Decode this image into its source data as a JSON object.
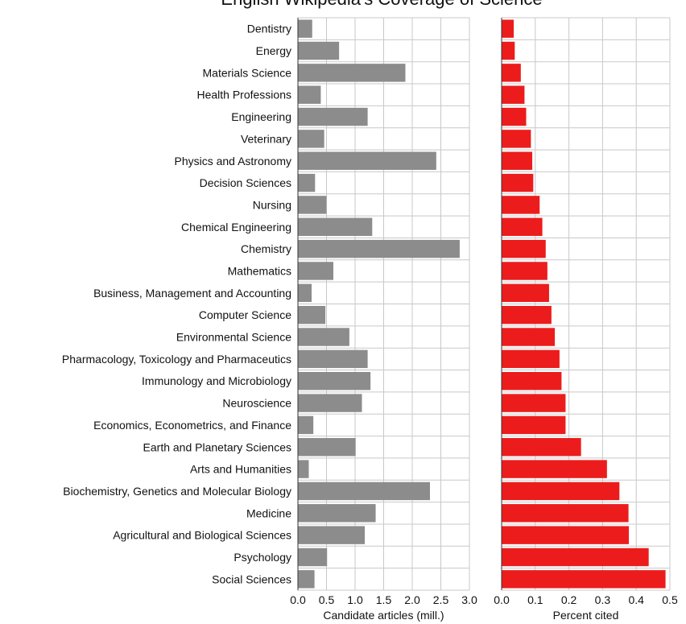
{
  "chart_data": {
    "title": "English Wikipedia's Coverage of Science",
    "categories": [
      "Dentistry",
      "Energy",
      "Materials Science",
      "Health Professions",
      "Engineering",
      "Veterinary",
      "Physics and Astronomy",
      "Decision Sciences",
      "Nursing",
      "Chemical Engineering",
      "Chemistry",
      "Mathematics",
      "Business, Management and Accounting",
      "Computer Science",
      "Environmental Science",
      "Pharmacology, Toxicology and Pharmaceutics",
      "Immunology and Microbiology",
      "Neuroscience",
      "Economics, Econometrics, and Finance",
      "Earth and Planetary Sciences",
      "Arts and Humanities",
      "Biochemistry, Genetics and Molecular Biology",
      "Medicine",
      "Agricultural and Biological Sciences",
      "Psychology",
      "Social Sciences"
    ],
    "panels": [
      {
        "type": "bar",
        "orientation": "horizontal",
        "xlabel": "Candidate articles (mill.)",
        "xlim": [
          0,
          3.0
        ],
        "xticks": [
          "0.0",
          "0.5",
          "1.0",
          "1.5",
          "2.0",
          "2.5",
          "3.0"
        ],
        "color": "#8c8c8c",
        "grid": true,
        "values": [
          0.25,
          0.72,
          1.88,
          0.4,
          1.22,
          0.46,
          2.42,
          0.3,
          0.5,
          1.3,
          2.83,
          0.62,
          0.24,
          0.48,
          0.9,
          1.22,
          1.27,
          1.12,
          0.27,
          1.01,
          0.19,
          2.31,
          1.36,
          1.17,
          0.51,
          0.29
        ]
      },
      {
        "type": "bar",
        "orientation": "horizontal",
        "xlabel": "Percent cited",
        "xlim": [
          0,
          0.5
        ],
        "xticks": [
          "0.0",
          "0.1",
          "0.2",
          "0.3",
          "0.4",
          "0.5"
        ],
        "color": "#ec1c1c",
        "grid": true,
        "values": [
          0.036,
          0.039,
          0.057,
          0.068,
          0.073,
          0.087,
          0.091,
          0.094,
          0.113,
          0.121,
          0.131,
          0.136,
          0.141,
          0.148,
          0.158,
          0.172,
          0.178,
          0.19,
          0.19,
          0.236,
          0.313,
          0.35,
          0.377,
          0.378,
          0.437,
          0.487
        ]
      }
    ]
  }
}
